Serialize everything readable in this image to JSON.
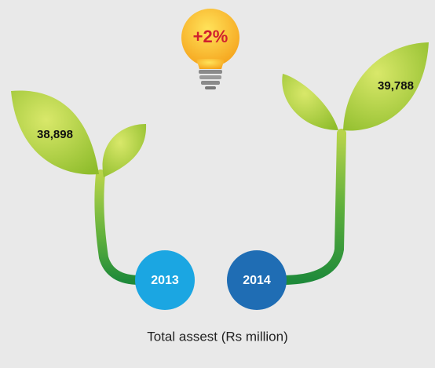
{
  "badge": "+2%",
  "items": [
    {
      "year": "2013",
      "value": "38,898"
    },
    {
      "year": "2014",
      "value": "39,788"
    }
  ],
  "caption": "Total assest (Rs million)"
}
